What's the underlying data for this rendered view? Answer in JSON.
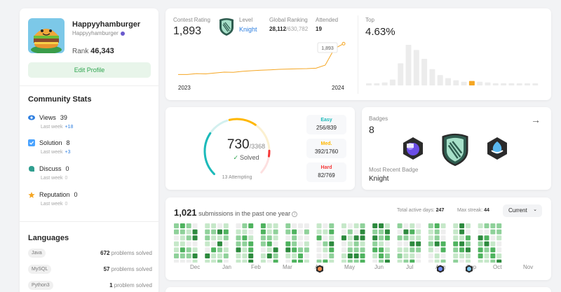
{
  "profile": {
    "username": "Happyyhamburger",
    "handle": "Happyyhamburger",
    "rank_label": "Rank",
    "rank_value": "46,343",
    "edit_label": "Edit Profile"
  },
  "community": {
    "title": "Community Stats",
    "stats": [
      {
        "label": "Views",
        "value": "39",
        "sub": "Last week",
        "delta": "+18",
        "icon": "eye-icon",
        "color": "#2e7fe0"
      },
      {
        "label": "Solution",
        "value": "8",
        "sub": "Last week",
        "delta": "+3",
        "icon": "check-square-icon",
        "color": "#4aa3ff"
      },
      {
        "label": "Discuss",
        "value": "0",
        "sub": "Last week",
        "delta": "0",
        "icon": "chat-icon",
        "color": "#2f9e8f"
      },
      {
        "label": "Reputation",
        "value": "0",
        "sub": "Last week",
        "delta": "0",
        "icon": "star-icon",
        "color": "#f5a623"
      }
    ]
  },
  "languages": {
    "title": "Languages",
    "items": [
      {
        "name": "Java",
        "count": "672",
        "unit": "problems solved"
      },
      {
        "name": "MySQL",
        "count": "57",
        "unit": "problems solved"
      },
      {
        "name": "Python3",
        "count": "1",
        "unit": "problem solved"
      }
    ]
  },
  "contest": {
    "rating_label": "Contest Rating",
    "rating_value": "1,893",
    "level_label": "Level",
    "level_value": "Knight",
    "global_label": "Global Ranking",
    "global_value": "28,112",
    "global_total": "/630,782",
    "attended_label": "Attended",
    "attended_value": "19",
    "tooltip_value": "1,893",
    "year_start": "2023",
    "year_end": "2024",
    "top_label": "Top",
    "top_value": "4.63%",
    "rating_series": [
      1500,
      1500,
      1512,
      1508,
      1520,
      1530,
      1528,
      1540,
      1548,
      1555,
      1560,
      1566,
      1570,
      1572,
      1575,
      1580,
      1620,
      1830,
      1893
    ],
    "histogram": [
      2,
      3,
      4,
      8,
      30,
      55,
      48,
      36,
      22,
      14,
      10,
      7,
      5,
      6,
      5,
      4,
      3,
      3,
      3,
      2,
      2,
      2
    ],
    "histogram_highlight_index": 13,
    "accent_color": "#f5a623"
  },
  "solved": {
    "count": "730",
    "total": "/3368",
    "label": "Solved",
    "attempting": "13 Attempting",
    "easy_label": "Easy",
    "easy_value": "256/839",
    "medium_label": "Med.",
    "medium_value": "392/1760",
    "hard_label": "Hard",
    "hard_value": "82/769",
    "easy_fraction": 0.305,
    "medium_fraction": 0.223,
    "hard_fraction": 0.107,
    "easy_color": "#1cbaba",
    "medium_color": "#ffb700",
    "hard_color": "#f63737"
  },
  "badges": {
    "label": "Badges",
    "count": "8",
    "recent_label": "Most Recent Badge",
    "recent_value": "Knight"
  },
  "submissions": {
    "count": "1,021",
    "title_suffix": "submissions in the past one year",
    "active_label": "Total active days:",
    "active_value": "247",
    "streak_label": "Max streak:",
    "streak_value": "44",
    "select_value": "Current",
    "months": [
      "Dec",
      "Jan",
      "Feb",
      "Mar",
      "Apr",
      "May",
      "Jun",
      "Jul",
      "Aug",
      "Sep",
      "Oct",
      "Nov"
    ]
  }
}
